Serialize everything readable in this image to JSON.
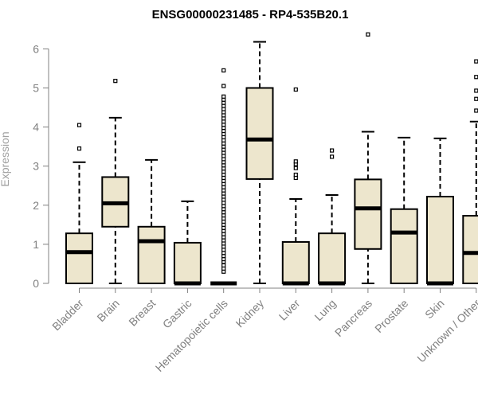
{
  "chart_data": {
    "type": "boxplot",
    "title": "ENSG00000231485 - RP4-535B20.1",
    "xlabel": "",
    "ylabel": "Expression",
    "ylim": [
      0,
      6.3
    ],
    "yticks": [
      0,
      1,
      2,
      3,
      4,
      5,
      6
    ],
    "grid": false,
    "box_fill": "#EDE6CD",
    "categories": [
      "Bladder",
      "Brain",
      "Breast",
      "Gastric",
      "Hematopoietic cells",
      "Kidney",
      "Liver",
      "Lung",
      "Pancreas",
      "Prostate",
      "Skin",
      "Unknown / Other"
    ],
    "boxes": [
      {
        "q1": 0,
        "median": 0.8,
        "q3": 1.28,
        "whisker_low": 0,
        "whisker_high": 3.1,
        "outliers": [
          3.45,
          4.05
        ]
      },
      {
        "q1": 1.45,
        "median": 2.05,
        "q3": 2.72,
        "whisker_low": 0,
        "whisker_high": 4.24,
        "outliers": [
          5.18
        ]
      },
      {
        "q1": 0,
        "median": 1.08,
        "q3": 1.45,
        "whisker_low": 0,
        "whisker_high": 3.16,
        "outliers": []
      },
      {
        "q1": 0,
        "median": 0,
        "q3": 1.04,
        "whisker_low": 0,
        "whisker_high": 2.1,
        "outliers": []
      },
      {
        "q1": 0,
        "median": 0,
        "q3": 0,
        "whisker_low": 0,
        "whisker_high": 0,
        "outliers": [
          0.3,
          0.38,
          0.46,
          0.55,
          0.62,
          0.7,
          0.78,
          0.86,
          0.94,
          1.02,
          1.1,
          1.18,
          1.26,
          1.34,
          1.42,
          1.5,
          1.58,
          1.66,
          1.74,
          1.82,
          1.9,
          1.98,
          2.06,
          2.14,
          2.22,
          2.3,
          2.38,
          2.46,
          2.54,
          2.62,
          2.7,
          2.78,
          2.86,
          2.94,
          3.02,
          3.1,
          3.18,
          3.26,
          3.34,
          3.42,
          3.5,
          3.58,
          3.66,
          3.74,
          3.82,
          3.9,
          3.98,
          4.06,
          4.14,
          4.22,
          4.3,
          4.38,
          4.46,
          4.54,
          4.62,
          4.7,
          4.78,
          5.05,
          5.45
        ]
      },
      {
        "q1": 2.67,
        "median": 3.68,
        "q3": 5.0,
        "whisker_low": 0,
        "whisker_high": 6.18,
        "outliers": []
      },
      {
        "q1": 0,
        "median": 0,
        "q3": 1.06,
        "whisker_low": 0,
        "whisker_high": 2.16,
        "outliers": [
          2.7,
          2.78,
          2.95,
          3.05,
          3.12,
          4.96
        ]
      },
      {
        "q1": 0,
        "median": 0,
        "q3": 1.28,
        "whisker_low": 0,
        "whisker_high": 2.26,
        "outliers": [
          3.24,
          3.4
        ]
      },
      {
        "q1": 0.88,
        "median": 1.92,
        "q3": 2.66,
        "whisker_low": 0,
        "whisker_high": 3.88,
        "outliers": [
          6.37
        ]
      },
      {
        "q1": 0,
        "median": 1.3,
        "q3": 1.9,
        "whisker_low": 0,
        "whisker_high": 3.73,
        "outliers": []
      },
      {
        "q1": 0,
        "median": 0,
        "q3": 2.22,
        "whisker_low": 0,
        "whisker_high": 3.71,
        "outliers": []
      },
      {
        "q1": 0,
        "median": 0.78,
        "q3": 1.73,
        "whisker_low": 0,
        "whisker_high": 4.14,
        "outliers": [
          4.42,
          4.72,
          4.93,
          5.28,
          5.68
        ]
      }
    ]
  }
}
